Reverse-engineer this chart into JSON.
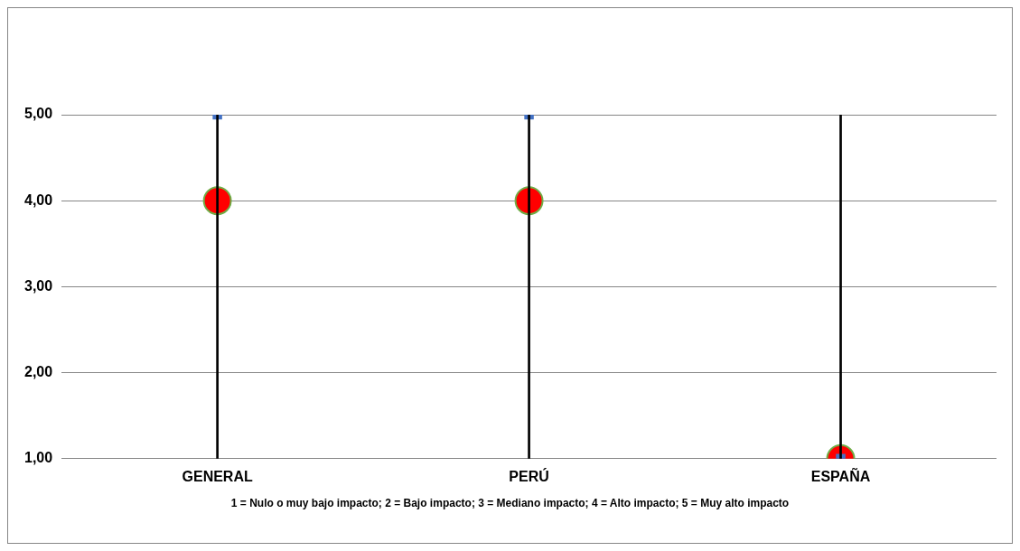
{
  "chart_data": {
    "type": "scatter",
    "categories": [
      "GENERAL",
      "PERÚ",
      "ESPAÑA"
    ],
    "ylim": [
      1,
      5
    ],
    "yticks": [
      {
        "value": 1,
        "label": "1,00"
      },
      {
        "value": 2,
        "label": "2,00"
      },
      {
        "value": 3,
        "label": "3,00"
      },
      {
        "value": 4,
        "label": "4,00"
      },
      {
        "value": 5,
        "label": "5,00"
      }
    ],
    "grid": "y",
    "annotations": [
      "1 = Nulo o muy bajo impacto; 2 = Bajo impacto; 3 = Mediano impacto; 4 = Alto impacto; 5 = Muy alto impacto"
    ],
    "series": [
      {
        "type": "bar",
        "color": "#000000",
        "base": [
          1,
          1,
          1
        ],
        "values": [
          4,
          4,
          4
        ]
      },
      {
        "color": "#ff0000",
        "marker": "circle",
        "values": [
          4,
          4,
          1
        ]
      },
      {
        "color": "#4472c4",
        "marker": "square",
        "values": [
          5,
          5,
          1
        ]
      }
    ]
  }
}
